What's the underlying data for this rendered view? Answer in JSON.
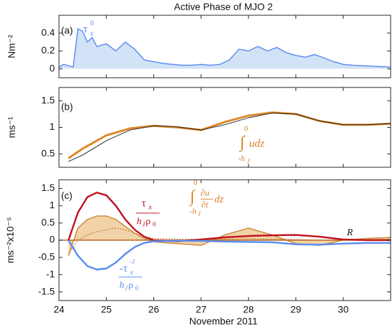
{
  "chart_data": [
    {
      "type": "line",
      "title": "Active Phase of MJO 2",
      "ylabel": "Nm⁻²",
      "x": [
        24,
        24.1,
        24.3,
        24.4,
        24.5,
        24.6,
        24.7,
        24.8,
        25,
        25.2,
        25.4,
        25.6,
        25.8,
        26,
        26.2,
        26.4,
        26.6,
        26.8,
        27,
        27.2,
        27.4,
        27.6,
        27.8,
        28,
        28.2,
        28.4,
        28.6,
        28.8,
        29,
        29.2,
        29.4,
        29.6,
        29.8,
        30,
        30.2,
        30.6,
        31
      ],
      "series": [
        {
          "style": "area",
          "color": "#5b8def",
          "fill": "#d3e3f7",
          "values": [
            0.02,
            0.05,
            0.02,
            0.45,
            0.42,
            0.3,
            0.35,
            0.25,
            0.28,
            0.2,
            0.3,
            0.22,
            0.1,
            0.08,
            0.06,
            0.05,
            0.04,
            0.04,
            0.05,
            0.04,
            0.05,
            0.1,
            0.22,
            0.2,
            0.25,
            0.2,
            0.24,
            0.18,
            0.15,
            0.13,
            0.16,
            0.12,
            0.08,
            0.05,
            0.04,
            0.03,
            0.02
          ]
        }
      ],
      "xlim": [
        24,
        31
      ],
      "xticks": [
        24,
        25,
        26,
        27,
        28,
        29,
        30
      ],
      "xtick_labels": false,
      "ylim": [
        -0.1,
        0.6
      ],
      "yticks": [
        0,
        0.2,
        0.4
      ],
      "annotations": [
        "(a)",
        "τ",
        "x",
        "0"
      ]
    },
    {
      "type": "line",
      "ylabel": "ms⁻¹",
      "x": [
        24.2,
        24.5,
        25,
        25.5,
        26,
        26.5,
        27,
        27.5,
        28,
        28.5,
        29,
        29.5,
        30,
        30.5,
        31
      ],
      "series": [
        {
          "style": "line",
          "color": "#e0872a",
          "width": 3,
          "values": [
            0.42,
            0.6,
            0.85,
            0.98,
            1.03,
            1.0,
            0.95,
            1.1,
            1.22,
            1.28,
            1.25,
            1.12,
            1.05,
            1.05,
            1.07
          ]
        },
        {
          "style": "line",
          "color": "#222222",
          "width": 1,
          "values": [
            0.36,
            0.48,
            0.75,
            0.95,
            1.03,
            1.01,
            0.95,
            1.05,
            1.18,
            1.27,
            1.25,
            1.12,
            1.05,
            1.05,
            1.07
          ]
        }
      ],
      "xlim": [
        24,
        31
      ],
      "xticks": [
        24,
        25,
        26,
        27,
        28,
        29,
        30
      ],
      "xtick_labels": false,
      "ylim": [
        0.25,
        1.75
      ],
      "yticks": [
        0.5,
        1,
        1.5
      ],
      "annotations": [
        "(b)",
        "0",
        "∫",
        "udz",
        "-h",
        "J"
      ]
    },
    {
      "type": "line",
      "ylabel": "ms⁻²x10⁻⁵",
      "xlabel": "November 2011",
      "x": [
        24.2,
        24.4,
        24.6,
        24.8,
        25,
        25.2,
        25.4,
        25.6,
        25.8,
        26,
        26.5,
        27,
        27.5,
        28,
        28.5,
        29,
        29.5,
        30,
        30.5,
        31
      ],
      "series": [
        {
          "style": "area",
          "color": "#c98a3c",
          "fill": "#f2d3a8",
          "values": [
            -0.45,
            0.35,
            0.6,
            0.7,
            0.7,
            0.6,
            0.4,
            0.2,
            0.05,
            -0.05,
            -0.1,
            -0.15,
            0.15,
            0.35,
            0.15,
            -0.1,
            -0.15,
            0,
            0.05,
            0.08
          ]
        },
        {
          "style": "dotted",
          "color": "#b5651d",
          "width": 1,
          "values": [
            -0.4,
            0,
            0.15,
            0.25,
            0.3,
            0.35,
            0.3,
            0.2,
            0.1,
            0.05,
            0.03,
            0.02,
            0.03,
            0.04,
            0.03,
            0.02,
            0,
            0,
            0.02,
            0.03
          ]
        },
        {
          "style": "line",
          "color": "#c0141f",
          "width": 2.5,
          "values": [
            0,
            0.8,
            1.25,
            1.38,
            1.3,
            1.0,
            0.6,
            0.3,
            0.1,
            0,
            -0.03,
            0.02,
            0.08,
            0.12,
            0.14,
            0.15,
            0.1,
            0.02,
            0,
            0
          ]
        },
        {
          "style": "line",
          "color": "#5b8def",
          "width": 2.5,
          "values": [
            0,
            -0.45,
            -0.75,
            -0.85,
            -0.82,
            -0.65,
            -0.4,
            -0.2,
            -0.08,
            -0.03,
            -0.02,
            -0.02,
            -0.04,
            -0.05,
            -0.06,
            -0.12,
            -0.13,
            -0.1,
            -0.08,
            -0.08
          ]
        }
      ],
      "xlim": [
        24,
        31
      ],
      "xticks": [
        24,
        25,
        26,
        27,
        28,
        29,
        30
      ],
      "xtick_labels": true,
      "ylim": [
        -1.75,
        1.75
      ],
      "yticks": [
        -1.5,
        -1,
        -0.5,
        0,
        0.5,
        1,
        1.5
      ],
      "annotations": [
        "(c)",
        "τ",
        "x",
        "h",
        "J",
        "ρ",
        "0",
        "0",
        "∫",
        "∂u",
        "∂t",
        "dz",
        "-h",
        "J",
        "R",
        "-τ",
        "x",
        "-J",
        "h",
        "J",
        "ρ",
        "0"
      ]
    }
  ]
}
